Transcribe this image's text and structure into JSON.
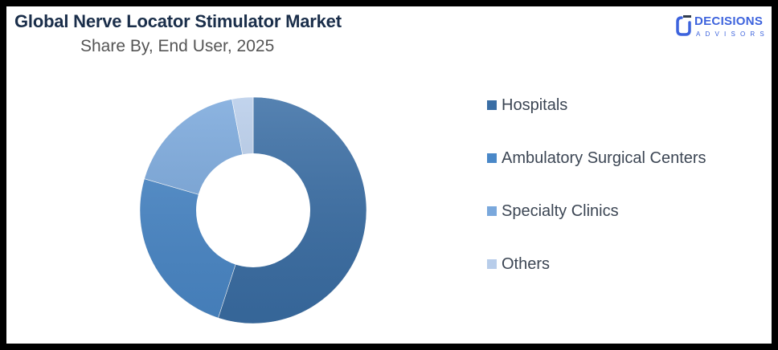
{
  "header": {
    "title": "Global Nerve Locator Stimulator Market",
    "subtitle": "Share By, End User, 2025"
  },
  "logo": {
    "word": "DECISIONS",
    "sub": "ADVISORS",
    "color": "#3d63dd"
  },
  "legend": {
    "items": [
      {
        "label": "Hospitals",
        "color": "#3a6ea5"
      },
      {
        "label": "Ambulatory Surgical Centers",
        "color": "#4a88c8"
      },
      {
        "label": "Specialty Clinics",
        "color": "#7aa8dc"
      },
      {
        "label": "Others",
        "color": "#b8cdea"
      }
    ]
  },
  "chart_data": {
    "type": "pie",
    "subtype": "donut",
    "title": "Global Nerve Locator Stimulator Market",
    "subtitle": "Share By, End User, 2025",
    "categories": [
      "Hospitals",
      "Ambulatory Surgical Centers",
      "Specialty Clinics",
      "Others"
    ],
    "values": [
      55,
      24.5,
      17.5,
      3
    ],
    "unit": "%",
    "colors": [
      "#3a6ea5",
      "#4a88c8",
      "#7aa8dc",
      "#b8cdea"
    ],
    "legend_position": "right",
    "start_angle_deg": 0,
    "direction": "clockwise"
  }
}
